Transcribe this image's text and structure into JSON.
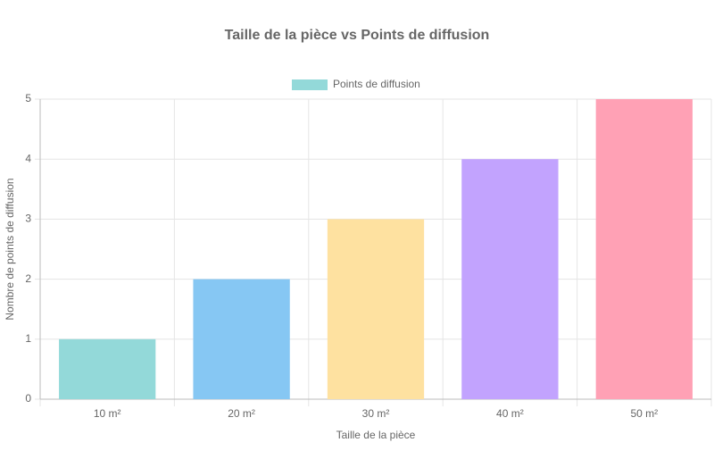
{
  "chart_data": {
    "type": "bar",
    "title": "Taille de la pièce vs Points de diffusion",
    "x_label": "Taille de la pièce",
    "y_label": "Nombre de points de diffusion",
    "categories": [
      "10 m²",
      "20 m²",
      "30 m²",
      "40 m²",
      "50 m²"
    ],
    "series": [
      {
        "name": "Points de diffusion",
        "values": [
          1,
          2,
          3,
          4,
          5
        ],
        "colors": [
          "#93d9d9",
          "#86c7f3",
          "#fee1a0",
          "#c2a3fe",
          "#ffa1b5"
        ]
      }
    ],
    "ylim": [
      0,
      5
    ],
    "yticks": [
      0,
      1,
      2,
      3,
      4,
      5
    ],
    "grid": true,
    "legend": "top"
  }
}
